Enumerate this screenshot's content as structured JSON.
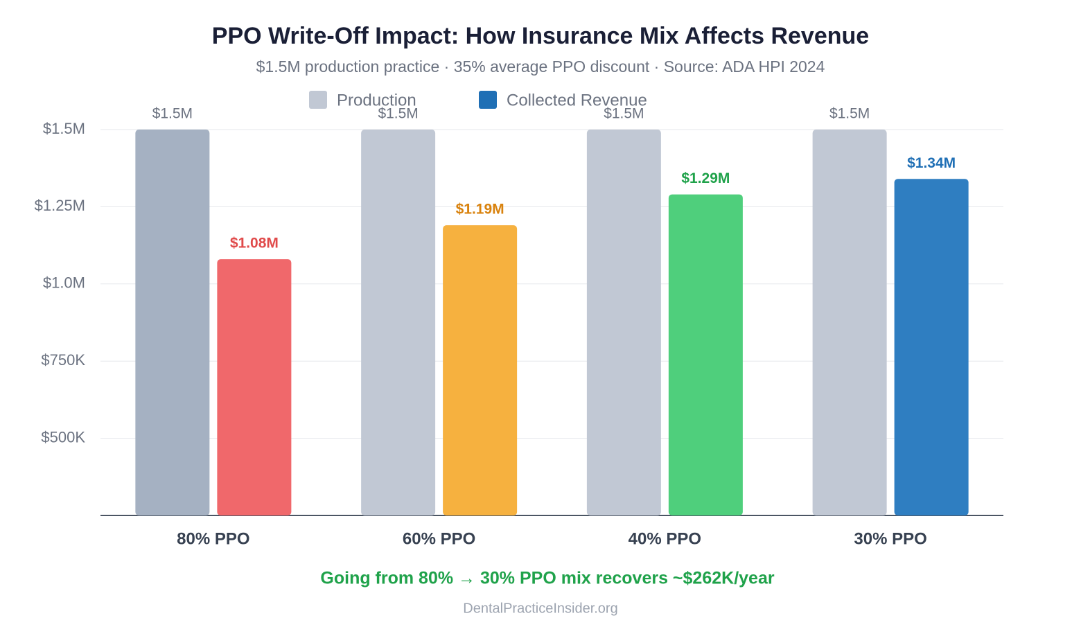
{
  "chart_data": {
    "type": "bar",
    "title": "PPO Write-Off Impact: How Insurance Mix Affects Revenue",
    "subtitle": "$1.5M production practice · 35% average PPO discount · Source: ADA HPI 2024",
    "annotation": "Going from 80% → 30% PPO mix recovers ~$262K/year",
    "source": "DentalPracticeInsider.org",
    "categories": [
      "80% PPO",
      "60% PPO",
      "40% PPO",
      "30% PPO"
    ],
    "series": [
      {
        "name": "Production",
        "color": "#c1c8d4",
        "colors": [
          "#a5b1c2",
          "#c1c8d4",
          "#c1c8d4",
          "#c1c8d4"
        ],
        "label_colors": [
          "#6b7280",
          "#6b7280",
          "#6b7280",
          "#6b7280"
        ],
        "values": [
          1500000,
          1500000,
          1500000,
          1500000
        ],
        "value_labels": [
          "$1.5M",
          "$1.5M",
          "$1.5M",
          "$1.5M"
        ]
      },
      {
        "name": "Collected Revenue",
        "color": "#1f6fb5",
        "colors": [
          "#f0686b",
          "#f6b13f",
          "#4fcf7c",
          "#2f7ec1"
        ],
        "label_colors": [
          "#e04a4a",
          "#d9820d",
          "#1fa24a",
          "#1f6fb5"
        ],
        "values": [
          1080000,
          1190000,
          1290000,
          1340000
        ],
        "value_labels": [
          "$1.08M",
          "$1.19M",
          "$1.29M",
          "$1.34M"
        ]
      }
    ],
    "ylim": [
      250000,
      1500000
    ],
    "yticks": [
      {
        "value": 500000,
        "label": "$500K"
      },
      {
        "value": 750000,
        "label": "$750K"
      },
      {
        "value": 1000000,
        "label": "$1.0M"
      },
      {
        "value": 1250000,
        "label": "$1.25M"
      },
      {
        "value": 1500000,
        "label": "$1.5M"
      }
    ],
    "grid": true
  }
}
